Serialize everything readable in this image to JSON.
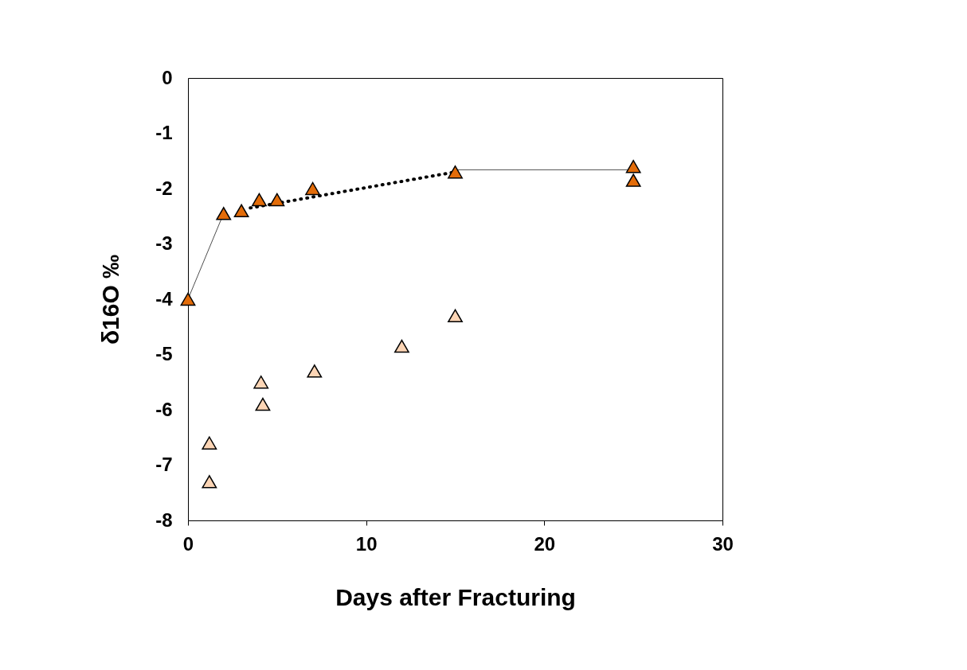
{
  "chart_data": {
    "type": "scatter",
    "xlabel": "Days after Fracturing",
    "ylabel": "δ16O ‰",
    "xlim": [
      0,
      30
    ],
    "xticks": [
      0,
      10,
      20,
      30
    ],
    "ylim": [
      -8,
      0
    ],
    "yticks": [
      0,
      -1,
      -2,
      -3,
      -4,
      -5,
      -6,
      -7,
      -8
    ],
    "marker": "triangle",
    "series": [
      {
        "type": "line",
        "color": "#000000",
        "line_style": "solid",
        "marker": "none",
        "x": [
          0,
          2
        ],
        "values": [
          -4.0,
          -2.45
        ]
      },
      {
        "type": "line",
        "color": "#000000",
        "line_style": "solid",
        "marker": "none",
        "x": [
          15,
          25.2
        ],
        "values": [
          -1.66,
          -1.66
        ]
      },
      {
        "type": "line",
        "color": "#000000",
        "line_style": "dotted",
        "marker": "none",
        "x": [
          3.5,
          15
        ],
        "values": [
          -2.35,
          -1.7
        ]
      },
      {
        "color": "#e36c09",
        "x": [
          0,
          2,
          3,
          4,
          5,
          7,
          15,
          25,
          25
        ],
        "values": [
          -4.0,
          -2.45,
          -2.4,
          -2.2,
          -2.2,
          -2.0,
          -1.7,
          -1.6,
          -1.85
        ]
      },
      {
        "color": "#fcd5b5",
        "x": [
          1.2,
          1.2,
          4.1,
          4.2,
          7.1,
          12,
          15
        ],
        "values": [
          -6.6,
          -7.3,
          -5.5,
          -5.9,
          -5.3,
          -4.85,
          -4.3
        ]
      }
    ]
  }
}
